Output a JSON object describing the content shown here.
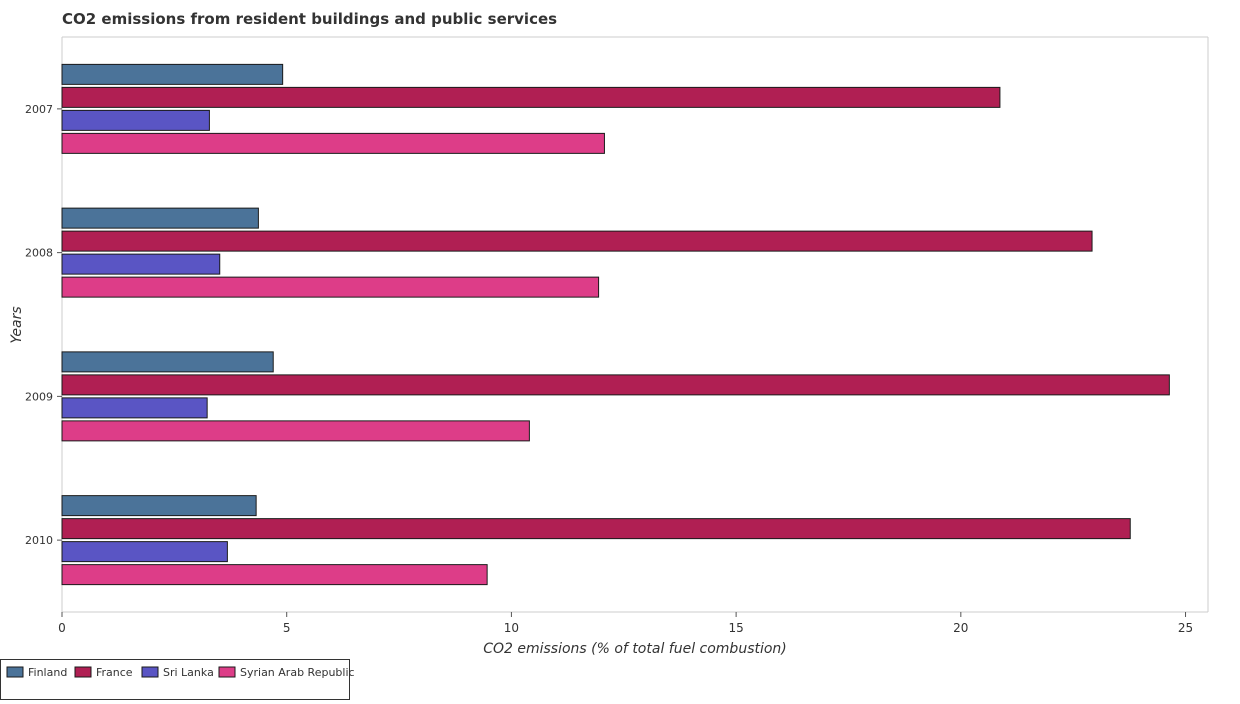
{
  "chart_data": {
    "type": "bar",
    "orientation": "horizontal",
    "title": "CO2 emissions from resident buildings and public services",
    "xlabel": "CO2 emissions (% of total fuel combustion)",
    "ylabel": "Years",
    "categories": [
      "2007",
      "2008",
      "2009",
      "2010"
    ],
    "series": [
      {
        "name": "Finland",
        "color": "#4b7399",
        "values": [
          4.91,
          4.37,
          4.7,
          4.32
        ]
      },
      {
        "name": "France",
        "color": "#b01f53",
        "values": [
          20.87,
          22.92,
          24.64,
          23.77
        ]
      },
      {
        "name": "Sri Lanka",
        "color": "#5a55c4",
        "values": [
          3.28,
          3.51,
          3.23,
          3.68
        ]
      },
      {
        "name": "Syrian Arab Republic",
        "color": "#dd3d88",
        "values": [
          12.07,
          11.94,
          10.4,
          9.46
        ]
      }
    ],
    "xlim": [
      0,
      25.5
    ],
    "xticks": [
      "0",
      "5",
      "10",
      "15",
      "20",
      "25"
    ],
    "grid": false,
    "legend_position": "bottom-left"
  }
}
